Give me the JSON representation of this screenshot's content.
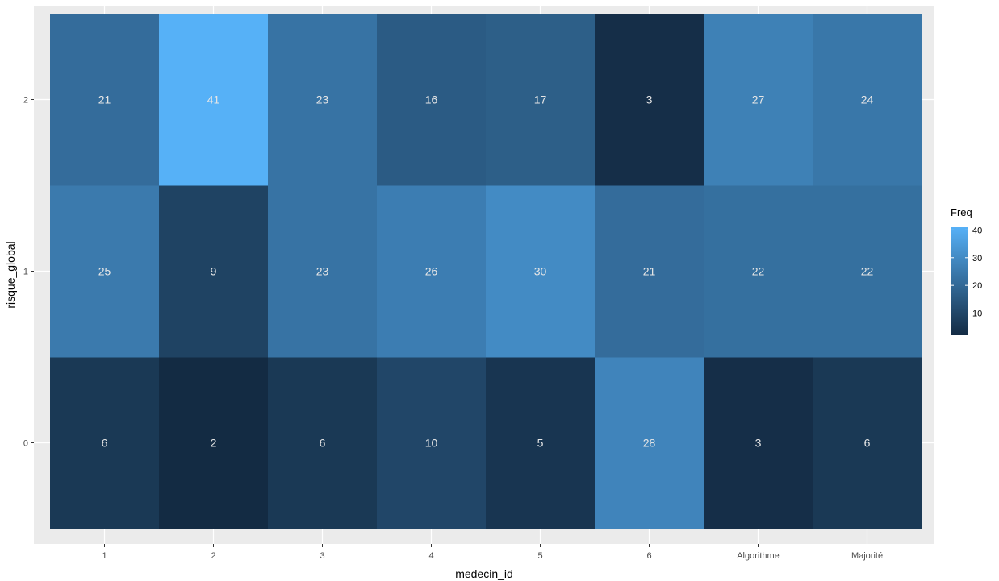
{
  "chart_data": {
    "type": "heatmap",
    "xlabel": "medecin_id",
    "ylabel": "risque_global",
    "x_categories": [
      "1",
      "2",
      "3",
      "4",
      "5",
      "6",
      "Algorithme",
      "Majorité"
    ],
    "y_categories": [
      "0",
      "1",
      "2"
    ],
    "values": [
      [
        6,
        2,
        6,
        10,
        5,
        28,
        3,
        6
      ],
      [
        25,
        9,
        23,
        26,
        30,
        21,
        22,
        22
      ],
      [
        21,
        41,
        23,
        16,
        17,
        3,
        27,
        24
      ]
    ],
    "legend": {
      "title": "Freq",
      "ticks": [
        10,
        20,
        30,
        40
      ],
      "range": [
        2,
        41
      ],
      "low_color": "#132b43",
      "high_color": "#56b1f7",
      "placement": "right"
    },
    "grid": true,
    "panel_background": "#ebebeb",
    "grid_color": "#ffffff"
  }
}
